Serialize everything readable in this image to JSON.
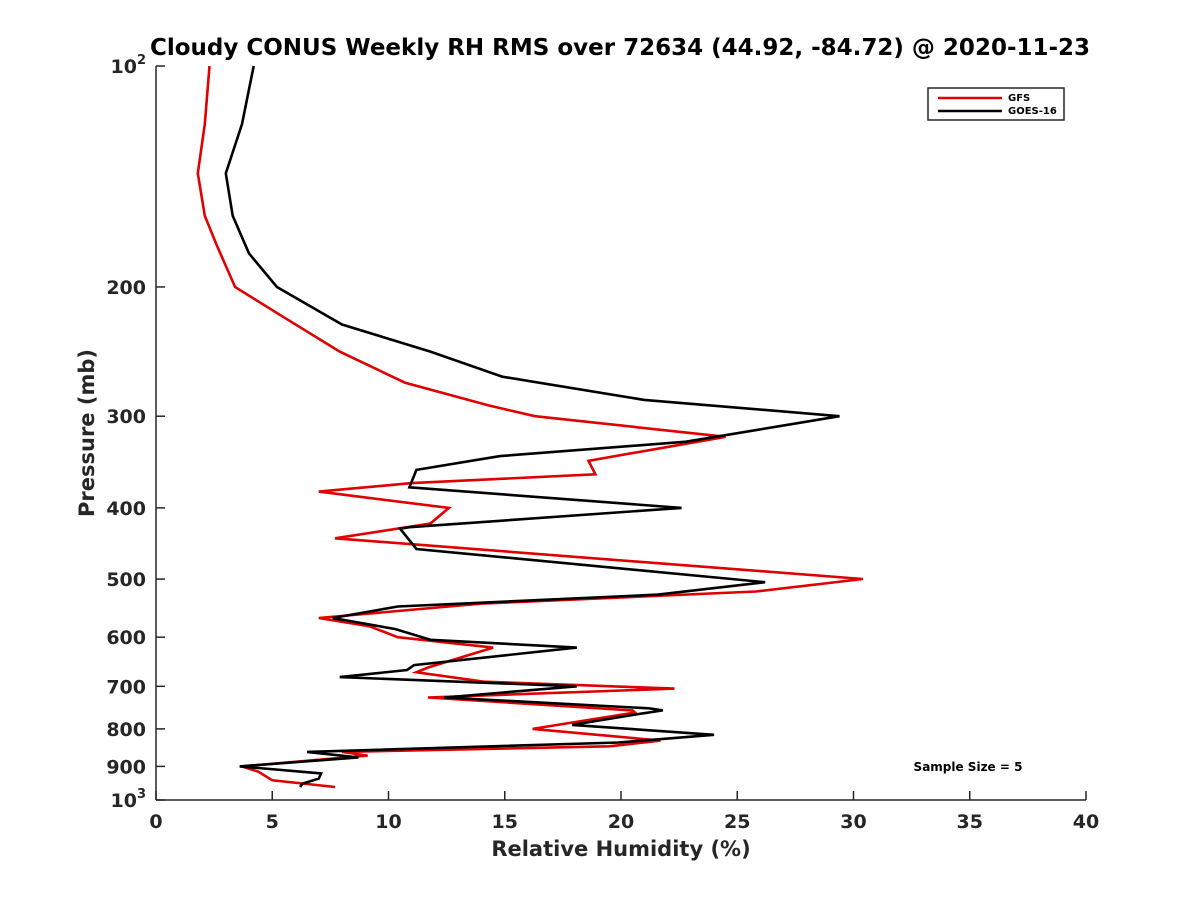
{
  "chart_data": {
    "type": "line",
    "title": "Cloudy CONUS Weekly RH RMS over 72634 (44.92, -84.72) @ 2020-11-23",
    "xlabel": "Relative Humidity (%)",
    "ylabel": "Pressure (mb)",
    "xlim": [
      0,
      40
    ],
    "ylim": [
      100,
      1000
    ],
    "y_scale": "log",
    "y_reversed": true,
    "grid": false,
    "legend_position": "top-right",
    "annotation": "Sample Size = 5",
    "x_ticks": [
      0,
      5,
      10,
      15,
      20,
      25,
      30,
      35,
      40
    ],
    "y_ticks": [
      {
        "value": 100,
        "base": "10",
        "exp": "2"
      },
      {
        "value": 200,
        "label": "200"
      },
      {
        "value": 300,
        "label": "300"
      },
      {
        "value": 400,
        "label": "400"
      },
      {
        "value": 500,
        "label": "500"
      },
      {
        "value": 600,
        "label": "600"
      },
      {
        "value": 700,
        "label": "700"
      },
      {
        "value": 800,
        "label": "800"
      },
      {
        "value": 900,
        "label": "900"
      },
      {
        "value": 1000,
        "base": "10",
        "exp": "3"
      }
    ],
    "series": [
      {
        "name": "GFS",
        "color": "#e00000",
        "points": [
          [
            2.3,
            100
          ],
          [
            2.1,
            120
          ],
          [
            1.8,
            140
          ],
          [
            2.1,
            160
          ],
          [
            2.6,
            175
          ],
          [
            3.4,
            200
          ],
          [
            5.5,
            220
          ],
          [
            7.9,
            245
          ],
          [
            10.7,
            270
          ],
          [
            14.3,
            290
          ],
          [
            16.3,
            300
          ],
          [
            24.5,
            320
          ],
          [
            18.6,
            345
          ],
          [
            18.9,
            360
          ],
          [
            11.0,
            370
          ],
          [
            7.0,
            380
          ],
          [
            12.6,
            400
          ],
          [
            11.8,
            420
          ],
          [
            7.7,
            440
          ],
          [
            30.4,
            500
          ],
          [
            25.8,
            520
          ],
          [
            14.0,
            540
          ],
          [
            7.0,
            565
          ],
          [
            9.2,
            580
          ],
          [
            10.4,
            600
          ],
          [
            14.5,
            620
          ],
          [
            11.7,
            660
          ],
          [
            11.2,
            670
          ],
          [
            14.1,
            690
          ],
          [
            22.3,
            705
          ],
          [
            11.7,
            725
          ],
          [
            20.5,
            755
          ],
          [
            20.6,
            760
          ],
          [
            16.2,
            800
          ],
          [
            21.7,
            830
          ],
          [
            19.5,
            845
          ],
          [
            8.0,
            860
          ],
          [
            9.1,
            870
          ],
          [
            3.7,
            900
          ],
          [
            4.4,
            915
          ],
          [
            5.0,
            940
          ],
          [
            7.7,
            960
          ]
        ]
      },
      {
        "name": "GOES-16",
        "color": "#000000",
        "points": [
          [
            4.2,
            100
          ],
          [
            3.7,
            120
          ],
          [
            3.0,
            140
          ],
          [
            3.3,
            160
          ],
          [
            4.0,
            180
          ],
          [
            5.2,
            200
          ],
          [
            8.0,
            225
          ],
          [
            11.8,
            245
          ],
          [
            14.9,
            265
          ],
          [
            21.0,
            285
          ],
          [
            29.4,
            300
          ],
          [
            22.8,
            325
          ],
          [
            14.8,
            340
          ],
          [
            11.2,
            355
          ],
          [
            10.9,
            375
          ],
          [
            22.6,
            400
          ],
          [
            10.9,
            425
          ],
          [
            10.5,
            427
          ],
          [
            11.2,
            455
          ],
          [
            26.2,
            505
          ],
          [
            21.6,
            525
          ],
          [
            10.4,
            545
          ],
          [
            7.6,
            565
          ],
          [
            10.3,
            585
          ],
          [
            11.8,
            605
          ],
          [
            18.1,
            620
          ],
          [
            11.1,
            655
          ],
          [
            10.8,
            665
          ],
          [
            7.9,
            680
          ],
          [
            18.1,
            700
          ],
          [
            12.4,
            725
          ],
          [
            21.2,
            750
          ],
          [
            21.8,
            755
          ],
          [
            20.6,
            765
          ],
          [
            17.9,
            790
          ],
          [
            24.0,
            815
          ],
          [
            19.9,
            835
          ],
          [
            6.5,
            860
          ],
          [
            8.7,
            875
          ],
          [
            3.6,
            900
          ],
          [
            7.1,
            920
          ],
          [
            7.0,
            935
          ],
          [
            6.3,
            950
          ],
          [
            6.2,
            960
          ]
        ]
      }
    ]
  }
}
